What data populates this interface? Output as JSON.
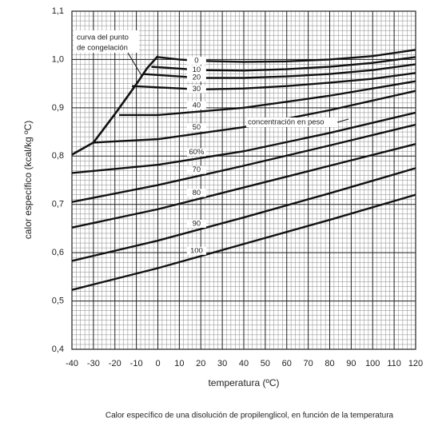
{
  "chart_data": {
    "type": "line",
    "ylabel": "calor específico (kcal/kg ºC)",
    "xlabel": "temperatura (ºC)",
    "caption": "Calor específico de una disolución de propilenglicol, en función de la temperatura",
    "annotations": {
      "freezing": [
        "curva del punto",
        "de congelación"
      ],
      "concentration": "concentración en peso"
    },
    "xlim": [
      -40,
      120
    ],
    "ylim": [
      0.4,
      1.1
    ],
    "xticks": [
      -40,
      -30,
      -20,
      -10,
      0,
      10,
      20,
      30,
      40,
      50,
      60,
      70,
      80,
      90,
      100,
      110,
      120
    ],
    "yticks": [
      {
        "value": 0.4,
        "label": "0,4"
      },
      {
        "value": 0.5,
        "label": "0,5"
      },
      {
        "value": 0.6,
        "label": "0,6"
      },
      {
        "value": 0.7,
        "label": "0,7"
      },
      {
        "value": 0.8,
        "label": "0,8"
      },
      {
        "value": 0.9,
        "label": "0,9"
      },
      {
        "value": 1.0,
        "label": "1,0"
      },
      {
        "value": 1.1,
        "label": "1,1"
      }
    ],
    "grid": true,
    "minor_grid": {
      "x": 2,
      "y": 0.01
    },
    "freezing_curve": {
      "x": [
        -40,
        -30,
        -20,
        -10,
        -5,
        0
      ],
      "values": [
        0.803,
        0.828,
        0.887,
        0.949,
        0.982,
        1.007
      ]
    },
    "series": [
      {
        "name": "0",
        "color": "#111111",
        "x": [
          0,
          10,
          20,
          40,
          60,
          80,
          100,
          120
        ],
        "values": [
          1.005,
          1.0,
          0.997,
          0.995,
          0.996,
          1.0,
          1.007,
          1.02
        ]
      },
      {
        "name": "10",
        "color": "#111111",
        "x": [
          -3,
          20,
          40,
          60,
          80,
          100,
          120
        ],
        "values": [
          0.985,
          0.978,
          0.977,
          0.98,
          0.985,
          0.993,
          1.005
        ]
      },
      {
        "name": "20",
        "color": "#111111",
        "x": [
          -7,
          20,
          40,
          60,
          80,
          100,
          120
        ],
        "values": [
          0.97,
          0.962,
          0.962,
          0.965,
          0.97,
          0.978,
          0.99
        ]
      },
      {
        "name": "30",
        "color": "#111111",
        "x": [
          -12,
          20,
          40,
          60,
          80,
          100,
          120
        ],
        "values": [
          0.945,
          0.938,
          0.94,
          0.945,
          0.952,
          0.96,
          0.972
        ]
      },
      {
        "name": "40",
        "color": "#111111",
        "x": [
          -18,
          0,
          40,
          80,
          120
        ],
        "values": [
          0.885,
          0.885,
          0.9,
          0.925,
          0.955
        ]
      },
      {
        "name": "50",
        "color": "#111111",
        "x": [
          -30,
          0,
          40,
          80,
          120
        ],
        "values": [
          0.828,
          0.835,
          0.86,
          0.895,
          0.935
        ]
      },
      {
        "name": "60%",
        "color": "#111111",
        "x": [
          -40,
          0,
          40,
          80,
          120
        ],
        "values": [
          0.765,
          0.782,
          0.81,
          0.848,
          0.89
        ]
      },
      {
        "name": "70",
        "color": "#111111",
        "x": [
          -40,
          0,
          40,
          80,
          120
        ],
        "values": [
          0.705,
          0.74,
          0.78,
          0.822,
          0.865
        ]
      },
      {
        "name": "80",
        "color": "#111111",
        "x": [
          -40,
          0,
          40,
          80,
          120
        ],
        "values": [
          0.652,
          0.69,
          0.735,
          0.78,
          0.825
        ]
      },
      {
        "name": "90",
        "color": "#111111",
        "x": [
          -40,
          0,
          40,
          80,
          120
        ],
        "values": [
          0.583,
          0.625,
          0.673,
          0.723,
          0.775
        ]
      },
      {
        "name": "100",
        "color": "#111111",
        "x": [
          -40,
          0,
          40,
          80,
          120
        ],
        "values": [
          0.523,
          0.568,
          0.618,
          0.668,
          0.72
        ]
      }
    ]
  }
}
